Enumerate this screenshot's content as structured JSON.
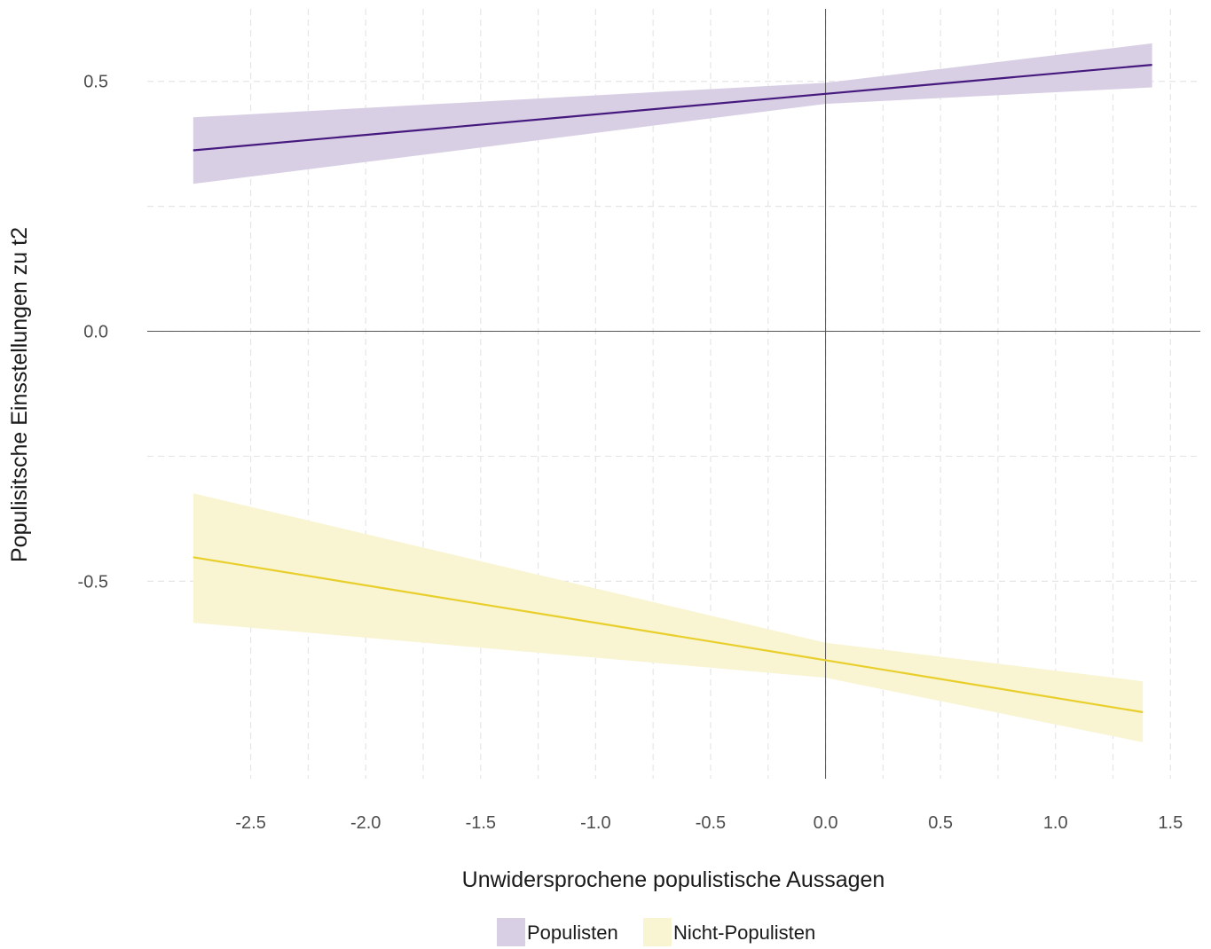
{
  "chart_data": {
    "type": "line",
    "title": "",
    "xlabel": "Unwidersprochene populistische Aussagen",
    "ylabel": "Populisitsche Einsstellungen zu t2",
    "xlim": [
      -2.95,
      1.63
    ],
    "ylim": [
      -0.895,
      0.645
    ],
    "x_ticks": [
      -2.5,
      -2.0,
      -1.5,
      -1.0,
      -0.5,
      0.0,
      0.5,
      1.0,
      1.5
    ],
    "x_tick_labels": [
      "-2.5",
      "-2.0",
      "-1.5",
      "-1.0",
      "-0.5",
      "0.0",
      "0.5",
      "1.0",
      "1.5"
    ],
    "y_ticks": [
      -0.5,
      0.0,
      0.5
    ],
    "y_tick_labels": [
      "-0.5",
      "0.0",
      "0.5"
    ],
    "x_minor_ticks": [
      -2.25,
      -1.75,
      -1.25,
      -0.75,
      -0.25,
      0.25,
      0.75,
      1.25
    ],
    "y_minor_ticks": [
      -0.25,
      0.25
    ],
    "reference_lines": {
      "x": 0,
      "y": 0
    },
    "grid": true,
    "legend_position": "bottom",
    "series": [
      {
        "name": "Populisten",
        "line_color": "#45197e",
        "band_color": "#d8cfe4",
        "x": [
          -2.75,
          0.0,
          1.42
        ],
        "y": [
          0.362,
          0.475,
          0.533
        ],
        "lower": [
          0.295,
          0.455,
          0.488
        ],
        "upper": [
          0.428,
          0.497,
          0.576
        ]
      },
      {
        "name": "Nicht-Populisten",
        "line_color": "#e8cf2c",
        "band_color": "#f9f4d1",
        "x": [
          -2.75,
          0.0,
          1.38
        ],
        "y": [
          -0.452,
          -0.658,
          -0.762
        ],
        "lower": [
          -0.583,
          -0.693,
          -0.822
        ],
        "upper": [
          -0.324,
          -0.623,
          -0.7
        ]
      }
    ]
  }
}
